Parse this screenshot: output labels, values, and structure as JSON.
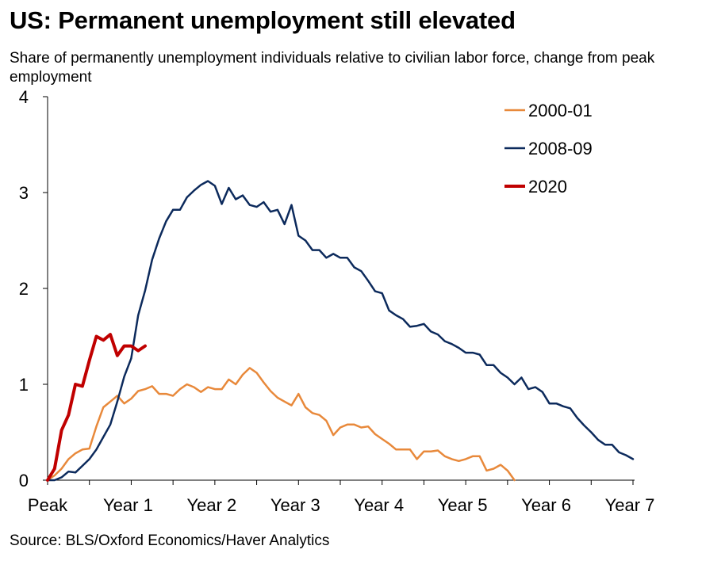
{
  "title": "US: Permanent unemployment still elevated",
  "subtitle": "Share of permanently unemployment individuals relative to civilian labor force, change from peak employment",
  "source": "Source: BLS/Oxford Economics/Haver Analytics",
  "colors": {
    "s2000": "#e8893b",
    "s2008": "#0c2a5c",
    "s2020": "#c00000",
    "axis": "#000000"
  },
  "chart_data": {
    "type": "line",
    "title": "US: Permanent unemployment still elevated",
    "subtitle": "Share of permanently unemployment individuals relative to civilian labor force, change from peak employment",
    "xlabel": "",
    "ylabel": "",
    "x_unit": "months after peak",
    "xlim": [
      0,
      84
    ],
    "ylim": [
      0,
      4
    ],
    "y_ticks": [
      0,
      1,
      2,
      3,
      4
    ],
    "x_ticks": [
      {
        "x": 0,
        "label": "Peak"
      },
      {
        "x": 12,
        "label": "Year 1"
      },
      {
        "x": 24,
        "label": "Year 2"
      },
      {
        "x": 36,
        "label": "Year 3"
      },
      {
        "x": 48,
        "label": "Year 4"
      },
      {
        "x": 60,
        "label": "Year 5"
      },
      {
        "x": 72,
        "label": "Year 6"
      },
      {
        "x": 84,
        "label": "Year 7"
      }
    ],
    "grid": false,
    "legend_position": "top-right",
    "series": [
      {
        "name": "2000-01",
        "color": "#e8893b",
        "width": 2.5,
        "values": [
          0,
          0.05,
          0.12,
          0.22,
          0.28,
          0.32,
          0.33,
          0.56,
          0.76,
          0.82,
          0.88,
          0.8,
          0.85,
          0.93,
          0.95,
          0.98,
          0.9,
          0.9,
          0.88,
          0.95,
          1.0,
          0.97,
          0.92,
          0.97,
          0.95,
          0.95,
          1.05,
          1.0,
          1.1,
          1.17,
          1.12,
          1.02,
          0.93,
          0.86,
          0.82,
          0.78,
          0.9,
          0.76,
          0.7,
          0.68,
          0.62,
          0.47,
          0.55,
          0.58,
          0.58,
          0.55,
          0.56,
          0.48,
          0.43,
          0.38,
          0.32,
          0.32,
          0.32,
          0.22,
          0.3,
          0.3,
          0.31,
          0.25,
          0.22,
          0.2,
          0.22,
          0.25,
          0.25,
          0.1,
          0.12,
          0.16,
          0.1,
          0.0
        ]
      },
      {
        "name": "2008-09",
        "color": "#0c2a5c",
        "width": 2.5,
        "values": [
          0,
          0,
          0.03,
          0.09,
          0.08,
          0.15,
          0.22,
          0.32,
          0.45,
          0.58,
          0.82,
          1.08,
          1.27,
          1.72,
          1.98,
          2.3,
          2.52,
          2.7,
          2.82,
          2.82,
          2.95,
          3.02,
          3.08,
          3.12,
          3.07,
          2.88,
          3.05,
          2.93,
          2.97,
          2.87,
          2.85,
          2.9,
          2.8,
          2.82,
          2.67,
          2.87,
          2.55,
          2.5,
          2.4,
          2.4,
          2.32,
          2.36,
          2.32,
          2.32,
          2.22,
          2.18,
          2.08,
          1.97,
          1.95,
          1.77,
          1.72,
          1.68,
          1.6,
          1.61,
          1.63,
          1.55,
          1.52,
          1.45,
          1.42,
          1.38,
          1.33,
          1.33,
          1.31,
          1.2,
          1.2,
          1.12,
          1.07,
          1.0,
          1.07,
          0.95,
          0.97,
          0.92,
          0.8,
          0.8,
          0.77,
          0.75,
          0.65,
          0.57,
          0.5,
          0.42,
          0.37,
          0.37,
          0.29,
          0.26,
          0.22
        ]
      },
      {
        "name": "2020",
        "color": "#c00000",
        "width": 4,
        "values": [
          0,
          0.12,
          0.52,
          0.68,
          1.0,
          0.98,
          1.25,
          1.5,
          1.46,
          1.52,
          1.3,
          1.4,
          1.4,
          1.35,
          1.4
        ]
      }
    ]
  }
}
